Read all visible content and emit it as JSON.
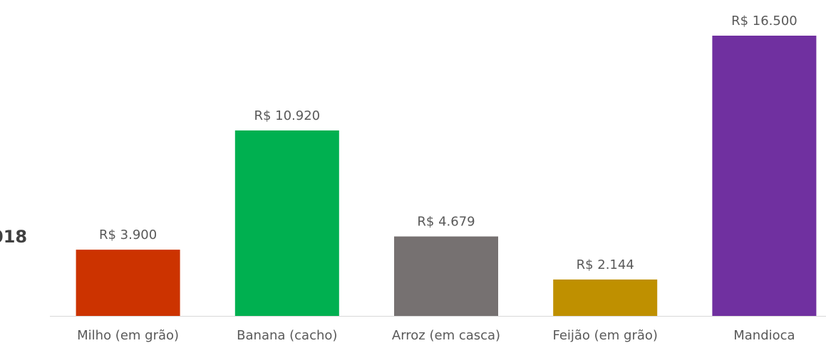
{
  "chart_data": {
    "type": "bar",
    "annotation": "018",
    "categories": [
      "Milho (em grão)",
      "Banana (cacho)",
      "Arroz (em casca)",
      "Feijão (em grão)",
      "Mandioca"
    ],
    "values": [
      3900,
      10920,
      4679,
      2144,
      16500
    ],
    "value_labels": [
      "R$ 3.900",
      "R$ 10.920",
      "R$ 4.679",
      "R$ 2.144",
      "R$ 16.500"
    ],
    "colors": [
      "#cc3300",
      "#00b050",
      "#767171",
      "#bf9000",
      "#7030a0"
    ]
  }
}
